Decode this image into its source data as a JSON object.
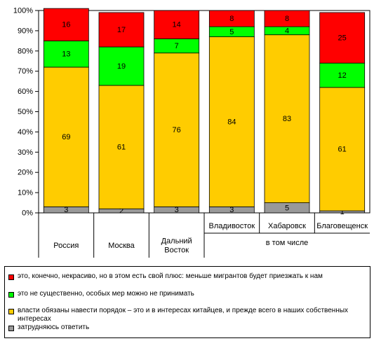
{
  "colors": {
    "series": [
      "#999999",
      "#FFCC00",
      "#00FF00",
      "#FF0000"
    ],
    "plot_background": "#FFFFFF",
    "page_background": "#FFFFFF"
  },
  "chart_data": {
    "type": "bar",
    "stacked": "percent",
    "categories": [
      "Россия",
      "Москва",
      "Дальний Восток",
      "Владивосток",
      "Хабаровск",
      "Благовещенск"
    ],
    "category_lines": [
      [
        "Россия"
      ],
      [
        "Москва"
      ],
      [
        "Дальний",
        "Восток"
      ],
      [
        "Владивосток"
      ],
      [
        "Хабаровск"
      ],
      [
        "Благовещенск"
      ]
    ],
    "group_label": "в том числе",
    "series": [
      {
        "name": "затрудняюсь ответить",
        "values": [
          3,
          2,
          3,
          3,
          5,
          1
        ]
      },
      {
        "name": "власти обязаны навести порядок – это и в интересах китайцев, и прежде всего в наших собственных интересах",
        "values": [
          69,
          61,
          76,
          84,
          83,
          61
        ]
      },
      {
        "name": "это не существенно, особых мер можно не принимать",
        "values": [
          13,
          19,
          7,
          5,
          4,
          12
        ]
      },
      {
        "name": "это, конечно, некрасиво, но в этом есть свой плюс: меньше мигрантов будет приезжать к нам",
        "values": [
          16,
          17,
          14,
          8,
          8,
          25
        ]
      }
    ],
    "yticks": [
      "0%",
      "10%",
      "20%",
      "30%",
      "40%",
      "50%",
      "60%",
      "70%",
      "80%",
      "90%",
      "100%"
    ],
    "ylim": [
      0,
      100
    ],
    "grid": false,
    "legend_position": "bottom"
  }
}
